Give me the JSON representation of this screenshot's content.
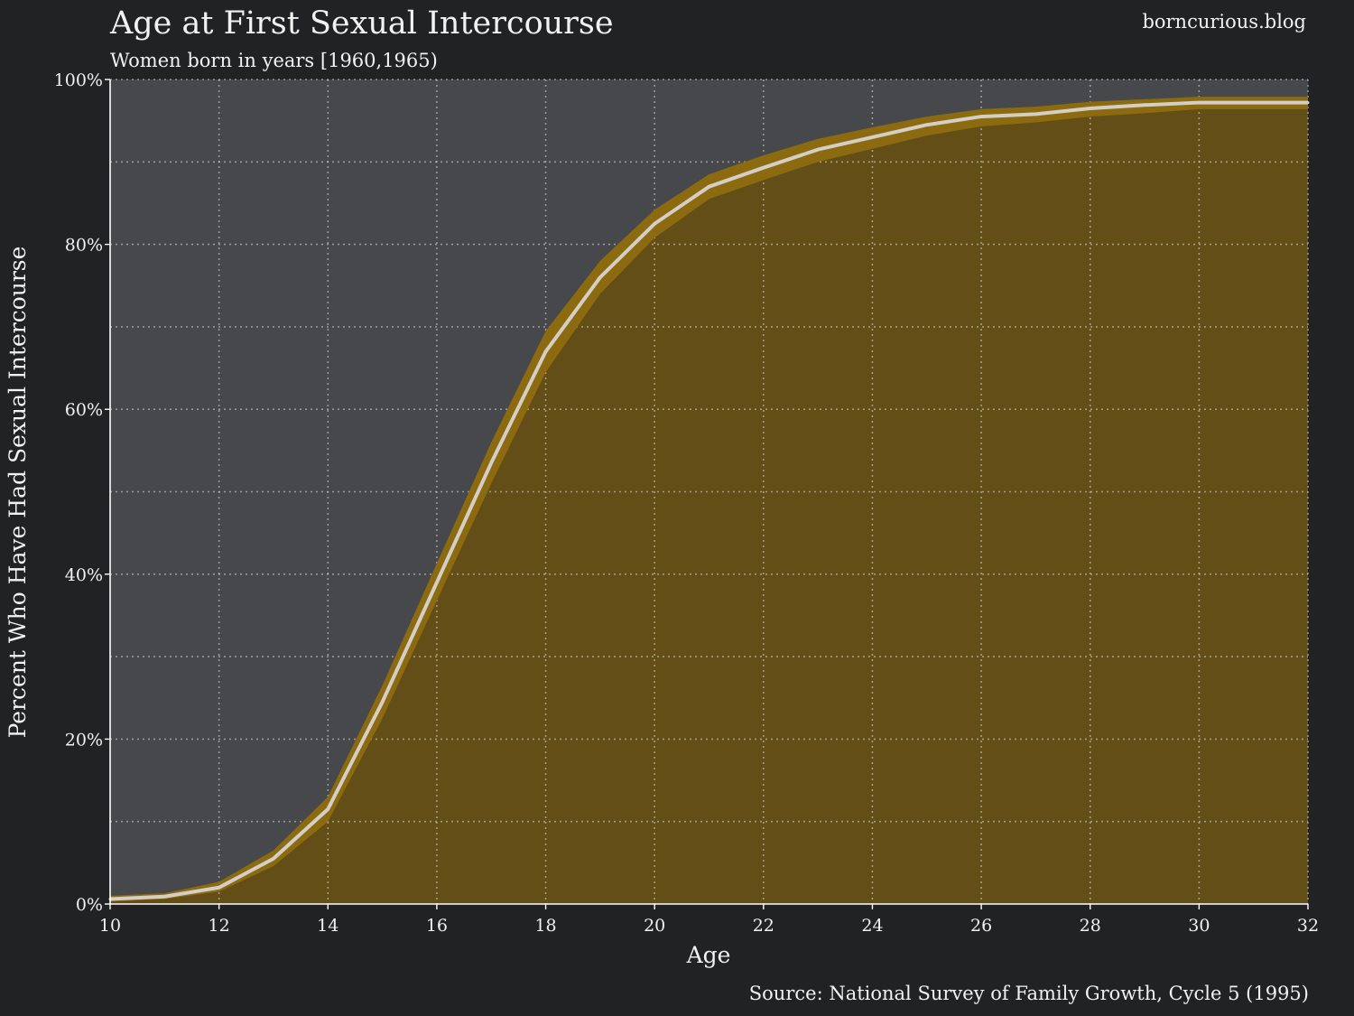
{
  "chart_data": {
    "type": "area",
    "title": "Age at First Sexual Intercourse",
    "subtitle": "Women born in years [1960,1965)",
    "watermark": "borncurious.blog",
    "source": "Source: National Survey of Family Growth, Cycle 5 (1995)",
    "xlabel": "Age",
    "ylabel": "Percent Who Have Had Sexual Intercourse",
    "xlim": [
      10,
      32
    ],
    "ylim": [
      0,
      100
    ],
    "x_ticks": [
      10,
      12,
      14,
      16,
      18,
      20,
      22,
      24,
      26,
      28,
      30,
      32
    ],
    "y_ticks": [
      0,
      20,
      40,
      60,
      80,
      100
    ],
    "y_tick_labels": [
      "0%",
      "20%",
      "40%",
      "60%",
      "80%",
      "100%"
    ],
    "y_minor_gridlines": [
      10,
      30,
      50,
      70,
      90
    ],
    "grid": true,
    "legend": "none",
    "colors": {
      "page_background": "#212224",
      "plot_background": "#47484b",
      "fill": "#644e17",
      "confidence_band": "#8c6a10",
      "line": "#d4cfc6",
      "grid": "#dcdcdc"
    },
    "series": [
      {
        "x": [
          10,
          11,
          12,
          13,
          14,
          15,
          16,
          17,
          18,
          19,
          20,
          21,
          22,
          23,
          24,
          25,
          26,
          27,
          28,
          29,
          30,
          31,
          32
        ],
        "values": [
          0.6,
          0.9,
          2.0,
          5.5,
          11.5,
          24.5,
          39.0,
          53.5,
          67.0,
          76.0,
          82.5,
          87.0,
          89.3,
          91.5,
          93.0,
          94.5,
          95.5,
          95.8,
          96.5,
          96.9,
          97.2,
          97.2,
          97.2
        ],
        "lower": [
          0.3,
          0.6,
          1.5,
          4.6,
          10.0,
          22.5,
          36.8,
          51.0,
          64.5,
          74.0,
          80.8,
          85.5,
          87.8,
          90.0,
          91.6,
          93.2,
          94.3,
          94.8,
          95.5,
          95.9,
          96.4,
          96.4,
          96.4
        ],
        "upper": [
          1.0,
          1.3,
          2.7,
          6.5,
          13.0,
          26.5,
          41.3,
          56.0,
          69.5,
          78.0,
          84.2,
          88.5,
          90.8,
          92.8,
          94.2,
          95.5,
          96.4,
          96.7,
          97.3,
          97.6,
          97.9,
          97.9,
          97.9
        ]
      }
    ]
  }
}
